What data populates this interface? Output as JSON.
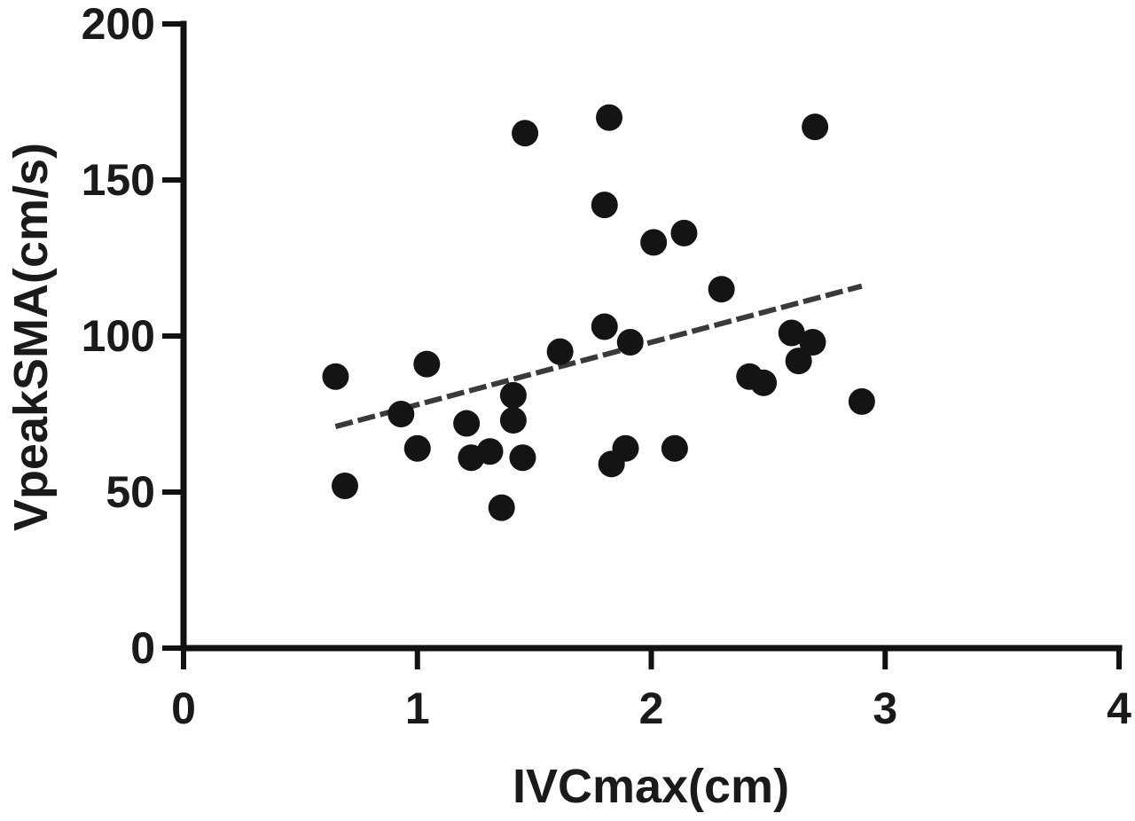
{
  "chart_data": {
    "type": "scatter",
    "title": "",
    "xlabel": "IVCmax(cm)",
    "ylabel": "VpeakSMA(cm/s)",
    "xlim": [
      0,
      4
    ],
    "ylim": [
      0,
      200
    ],
    "x_ticks": [
      "0",
      "1",
      "2",
      "3",
      "4"
    ],
    "y_ticks": [
      "0",
      "50",
      "100",
      "150",
      "200"
    ],
    "grid": false,
    "legend": "none",
    "marker_color": "#141414",
    "trend_color": "#3a3a3a",
    "points": [
      {
        "x": 0.65,
        "y": 87
      },
      {
        "x": 0.69,
        "y": 52
      },
      {
        "x": 0.93,
        "y": 75
      },
      {
        "x": 1.0,
        "y": 64
      },
      {
        "x": 1.04,
        "y": 91
      },
      {
        "x": 1.21,
        "y": 72
      },
      {
        "x": 1.23,
        "y": 61
      },
      {
        "x": 1.31,
        "y": 63
      },
      {
        "x": 1.36,
        "y": 45
      },
      {
        "x": 1.41,
        "y": 81
      },
      {
        "x": 1.41,
        "y": 73
      },
      {
        "x": 1.45,
        "y": 61
      },
      {
        "x": 1.46,
        "y": 165
      },
      {
        "x": 1.61,
        "y": 95
      },
      {
        "x": 1.8,
        "y": 142
      },
      {
        "x": 1.8,
        "y": 103
      },
      {
        "x": 1.82,
        "y": 170
      },
      {
        "x": 1.83,
        "y": 59
      },
      {
        "x": 1.89,
        "y": 64
      },
      {
        "x": 1.91,
        "y": 98
      },
      {
        "x": 2.01,
        "y": 130
      },
      {
        "x": 2.1,
        "y": 64
      },
      {
        "x": 2.14,
        "y": 133
      },
      {
        "x": 2.3,
        "y": 115
      },
      {
        "x": 2.42,
        "y": 87
      },
      {
        "x": 2.48,
        "y": 85
      },
      {
        "x": 2.6,
        "y": 101
      },
      {
        "x": 2.63,
        "y": 92
      },
      {
        "x": 2.69,
        "y": 98
      },
      {
        "x": 2.7,
        "y": 167
      },
      {
        "x": 2.9,
        "y": 79
      }
    ],
    "trendline": {
      "style": "dashed",
      "x": [
        0.65,
        2.9
      ],
      "y": [
        71,
        116
      ]
    }
  }
}
